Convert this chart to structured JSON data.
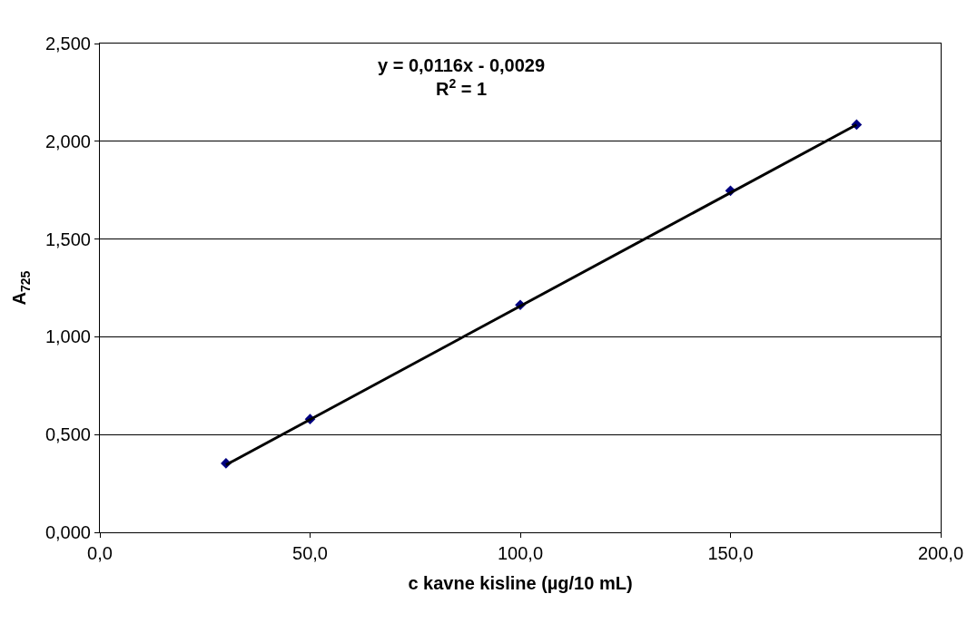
{
  "chart_data": {
    "type": "scatter",
    "xlabel": "c kavne kisline (µg/10 mL)",
    "ylabel": "A$_{725}$",
    "annotations": [
      "y = 0,0116x - 0,0029\nR$^{2}$ = 1"
    ],
    "series": [
      {
        "color": "#000080",
        "marker": "diamond",
        "x": [
          30,
          50,
          100,
          150,
          180
        ],
        "values": [
          0.353,
          0.579,
          1.163,
          1.747,
          2.085
        ]
      },
      {
        "type": "line",
        "color": "#000000",
        "line_style": "solid",
        "x": [
          30,
          180
        ],
        "values": [
          0.345,
          2.085
        ]
      }
    ],
    "xlim": [
      0,
      200
    ],
    "xticks": [
      {
        "value": 0,
        "label": "0,0"
      },
      {
        "value": 50,
        "label": "50,0"
      },
      {
        "value": 100,
        "label": "100,0"
      },
      {
        "value": 150,
        "label": "150,0"
      },
      {
        "value": 200,
        "label": "200,0"
      }
    ],
    "ylim": [
      0,
      2.5
    ],
    "yticks": [
      {
        "value": 0,
        "label": "0,000"
      },
      {
        "value": 0.5,
        "label": "0,500"
      },
      {
        "value": 1,
        "label": "1,000"
      },
      {
        "value": 1.5,
        "label": "1,500"
      },
      {
        "value": 2,
        "label": "2,000"
      },
      {
        "value": 2.5,
        "label": "2,500"
      }
    ],
    "grid": "y",
    "legend": false
  }
}
